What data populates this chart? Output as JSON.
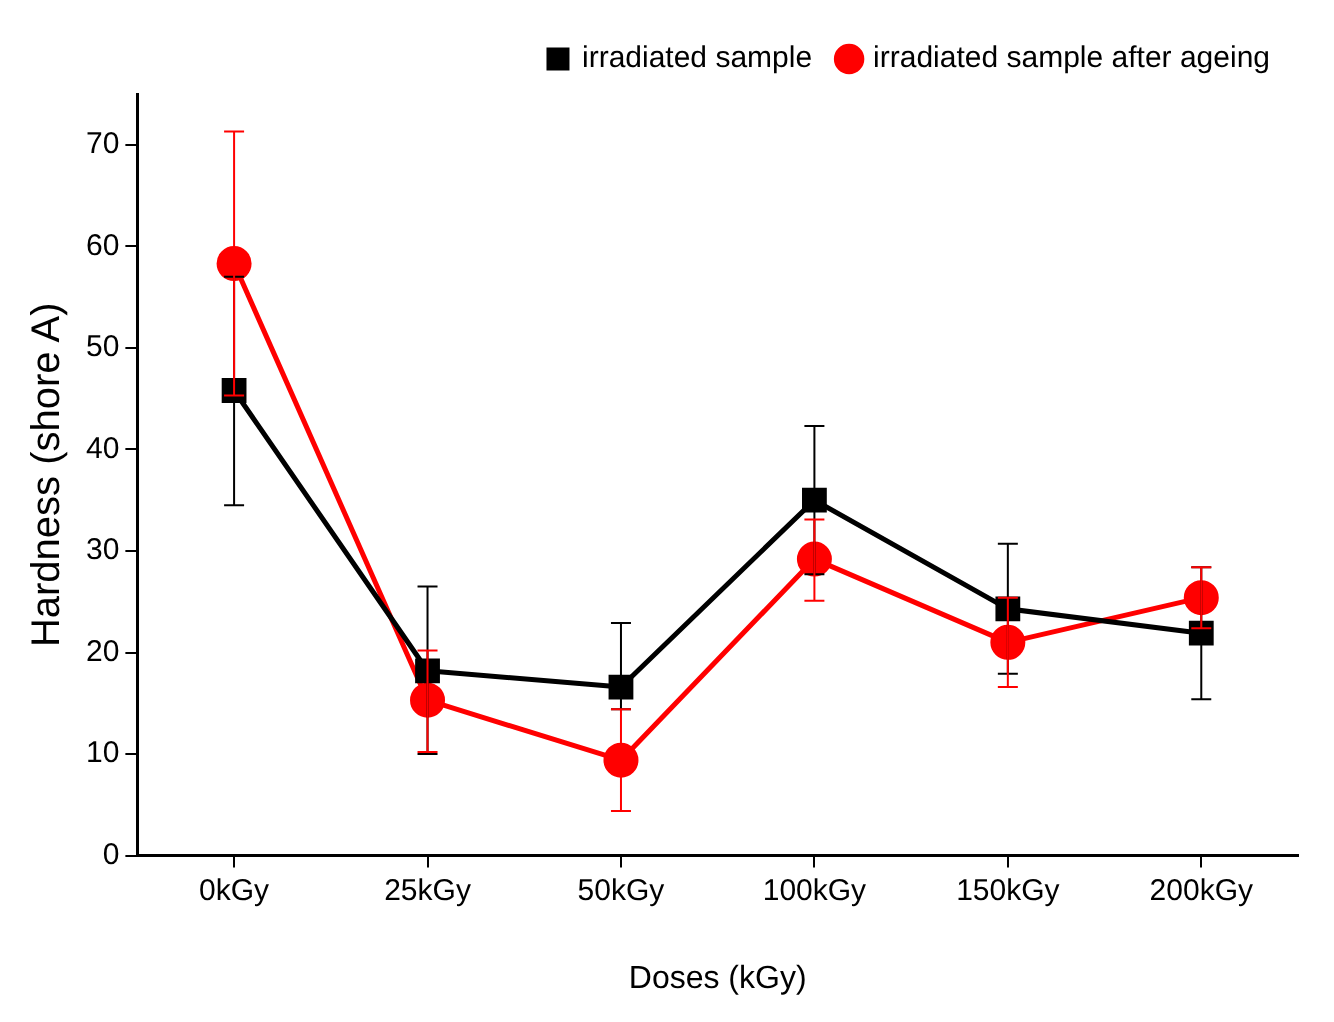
{
  "chart_data": {
    "type": "line",
    "xlabel": "Doses (kGy)",
    "ylabel": "Hardness (shore A)",
    "categories": [
      "0kGy",
      "25kGy",
      "50kGy",
      "100kGy",
      "150kGy",
      "200kGy"
    ],
    "series": [
      {
        "name": "irradiated sample",
        "color": "#000000",
        "marker": "square",
        "values": [
          45.8,
          18.2,
          16.6,
          35.0,
          24.3,
          21.9
        ],
        "errors": [
          [
            34.5,
            57.0
          ],
          [
            10.0,
            26.5
          ],
          [
            14.4,
            22.9
          ],
          [
            27.7,
            42.3
          ],
          [
            17.9,
            30.7
          ],
          [
            15.4,
            28.4
          ]
        ]
      },
      {
        "name": "irradiated sample after ageing",
        "color": "#ff0000",
        "marker": "circle",
        "values": [
          58.3,
          15.3,
          9.4,
          29.2,
          21.0,
          25.4
        ],
        "errors": [
          [
            45.3,
            71.3
          ],
          [
            10.2,
            20.2
          ],
          [
            4.4,
            14.4
          ],
          [
            25.1,
            33.1
          ],
          [
            16.6,
            25.4
          ],
          [
            22.4,
            28.4
          ]
        ]
      }
    ],
    "ylim": [
      0,
      75
    ],
    "yticks": [
      0,
      10,
      20,
      30,
      40,
      50,
      60,
      70
    ],
    "grid": false,
    "legend": "top right",
    "line_style": "solid"
  }
}
